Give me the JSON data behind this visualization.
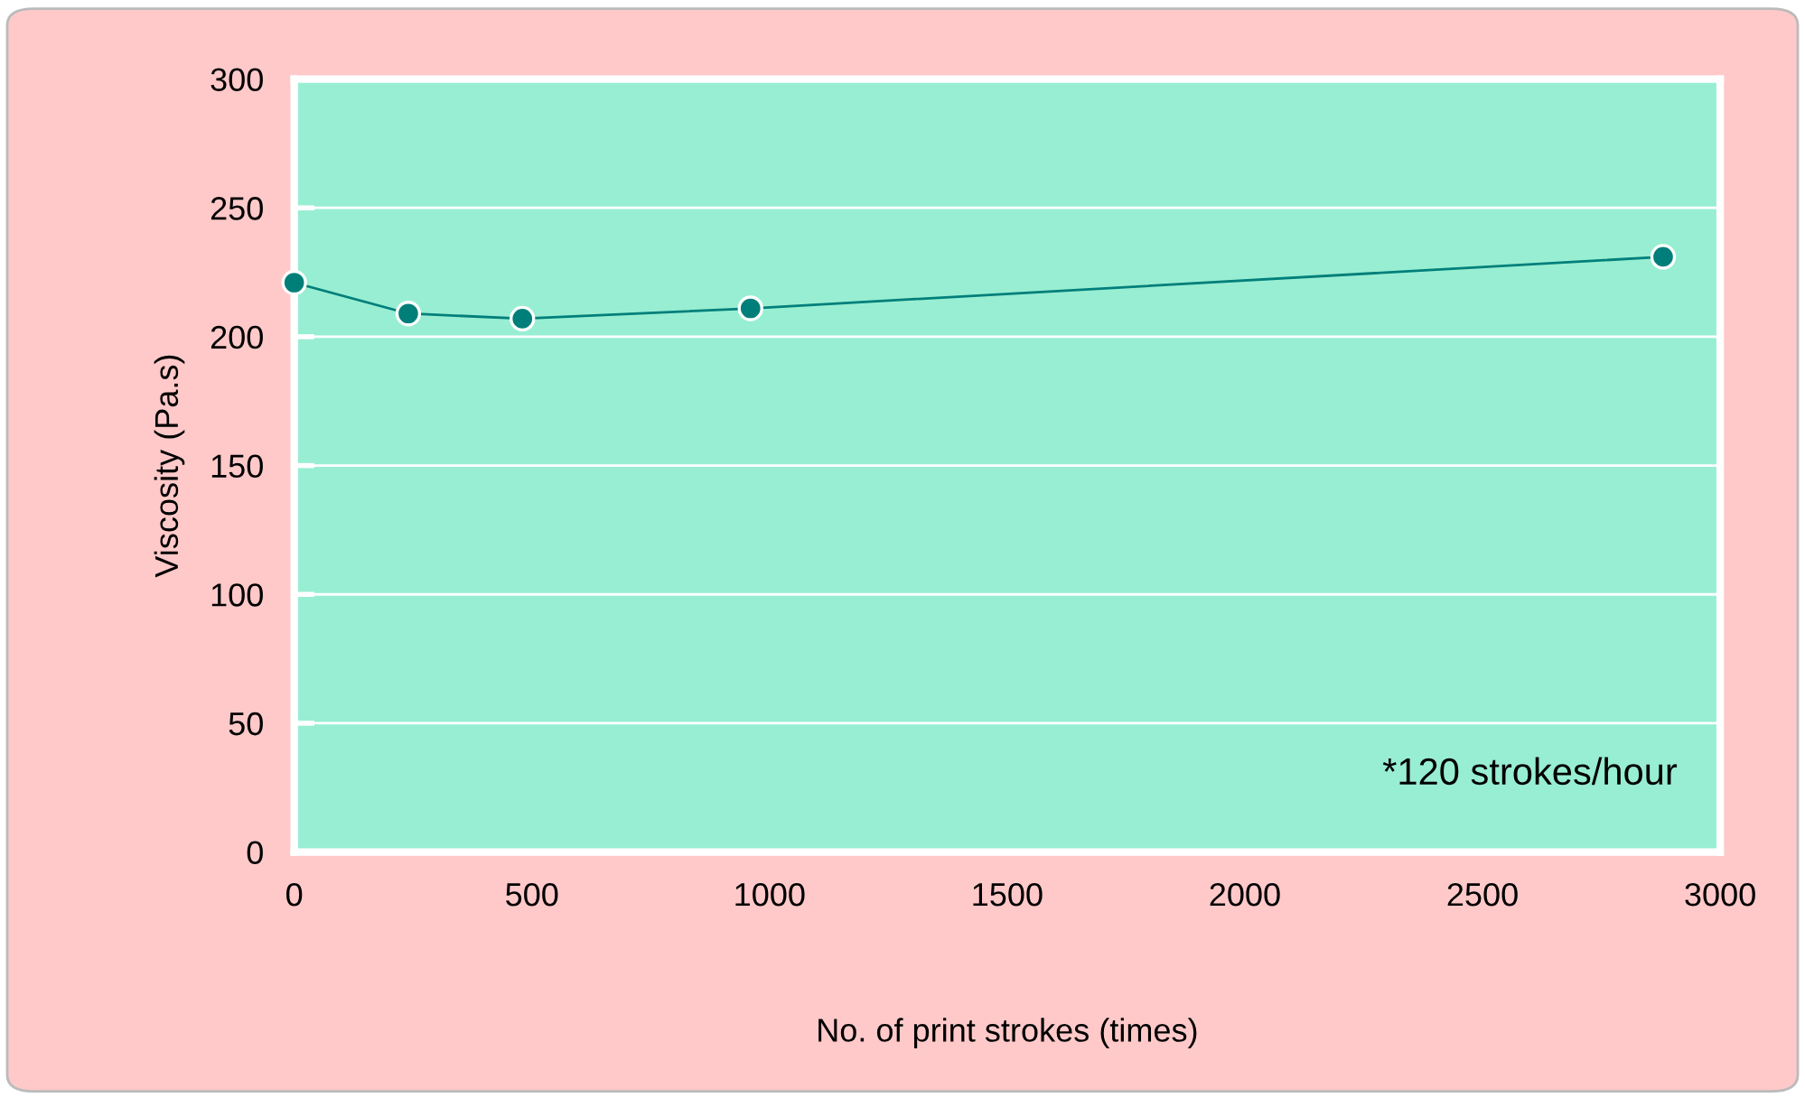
{
  "chart_data": {
    "type": "line",
    "xlabel": "No. of print strokes (times)",
    "ylabel": "Viscosity (Pa.s)",
    "x": [
      0,
      240,
      480,
      960,
      2880
    ],
    "series": [
      {
        "color": "#007f7a",
        "values": [
          221,
          209,
          207,
          211,
          231
        ]
      }
    ],
    "xlim": [
      0,
      3000
    ],
    "xticks": [
      0,
      500,
      1000,
      1500,
      2000,
      2500,
      3000
    ],
    "ylim": [
      0,
      300
    ],
    "yticks": [
      0,
      50,
      100,
      150,
      200,
      250,
      300
    ],
    "grid": "y",
    "marker": "circle",
    "line_style": "solid",
    "annotations": [
      "*120 strokes/hour"
    ]
  }
}
